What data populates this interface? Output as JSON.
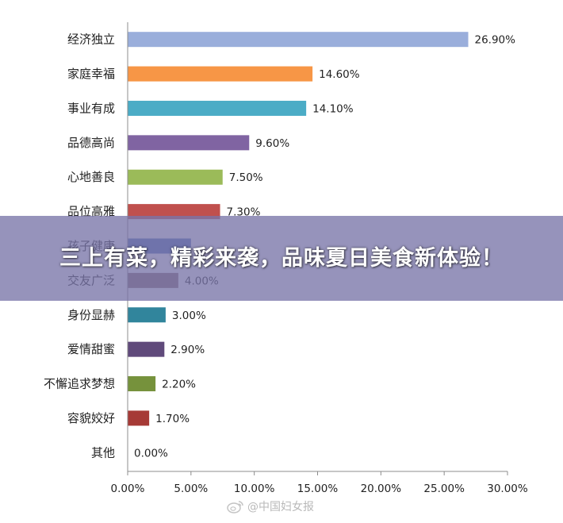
{
  "banner": {
    "text": "三上有菜，精彩来袭，品味夏日美食新体验！"
  },
  "watermark": {
    "text": "@中国妇女报",
    "icon": "weibo-icon"
  },
  "chart_data": {
    "type": "bar",
    "orientation": "horizontal",
    "title": "",
    "xlabel": "",
    "ylabel": "",
    "xlim": [
      0,
      30
    ],
    "x_ticks": [
      "0.00%",
      "5.00%",
      "10.00%",
      "15.00%",
      "20.00%",
      "25.00%",
      "30.00%"
    ],
    "grid": false,
    "legend": "none",
    "categories": [
      "经济独立",
      "家庭幸福",
      "事业有成",
      "品德高尚",
      "心地善良",
      "品位高雅",
      "孩子健康",
      "交友广泛",
      "身份显赫",
      "爱情甜蜜",
      "不懈追求梦想",
      "容貌姣好",
      "其他"
    ],
    "values": [
      26.9,
      14.6,
      14.1,
      9.6,
      7.5,
      7.3,
      5.0,
      4.0,
      3.0,
      2.9,
      2.2,
      1.7,
      0.0
    ],
    "value_labels": [
      "26.90%",
      "14.60%",
      "14.10%",
      "9.60%",
      "7.50%",
      "7.30%",
      "",
      "4.00%",
      "3.00%",
      "2.90%",
      "2.20%",
      "1.70%",
      "0.00%"
    ],
    "colors": [
      "#9aaedb",
      "#f79646",
      "#4bacc6",
      "#8064a2",
      "#9bbb59",
      "#c0504d",
      "#4f6fb5",
      "#8a6a6e",
      "#31859c",
      "#604a7b",
      "#76923c",
      "#a63a36",
      "#4f81bd"
    ]
  }
}
